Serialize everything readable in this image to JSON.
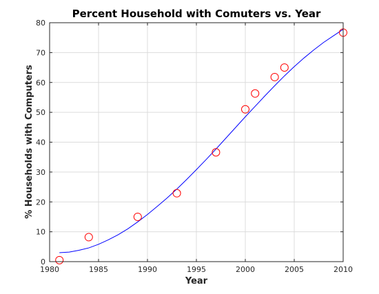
{
  "chart_data": {
    "type": "scatter",
    "title": "Percent Household with Comuters vs. Year",
    "xlabel": "Year",
    "ylabel": "% Households with Computers",
    "xlim": [
      1980,
      2010
    ],
    "ylim": [
      0,
      80
    ],
    "xticks": [
      1980,
      1985,
      1990,
      1995,
      2000,
      2005,
      2010
    ],
    "yticks": [
      0,
      10,
      20,
      30,
      40,
      50,
      60,
      70,
      80
    ],
    "grid": true,
    "legend": "none",
    "series": [
      {
        "type": "scatter",
        "marker": "circle",
        "color": "#ff0000",
        "x": [
          1981,
          1984,
          1989,
          1993,
          1997,
          2000,
          2001,
          2003,
          2004,
          2010
        ],
        "y": [
          0.5,
          8.2,
          15.0,
          22.9,
          36.6,
          51.0,
          56.3,
          61.8,
          65.0,
          76.7
        ]
      },
      {
        "type": "line",
        "color": "#0000ff",
        "x": [
          1981,
          1982,
          1983,
          1984,
          1985,
          1986,
          1987,
          1988,
          1989,
          1990,
          1991,
          1992,
          1993,
          1994,
          1995,
          1996,
          1997,
          1998,
          1999,
          2000,
          2001,
          2002,
          2003,
          2004,
          2005,
          2006,
          2007,
          2008,
          2009,
          2010
        ],
        "y": [
          3.0,
          3.2,
          3.8,
          4.6,
          5.8,
          7.3,
          9.0,
          11.0,
          13.3,
          15.8,
          18.5,
          21.3,
          24.3,
          27.5,
          30.8,
          34.2,
          37.7,
          41.3,
          44.9,
          48.5,
          52.0,
          55.5,
          58.9,
          62.2,
          65.3,
          68.2,
          70.9,
          73.4,
          75.6,
          77.8
        ]
      }
    ]
  }
}
